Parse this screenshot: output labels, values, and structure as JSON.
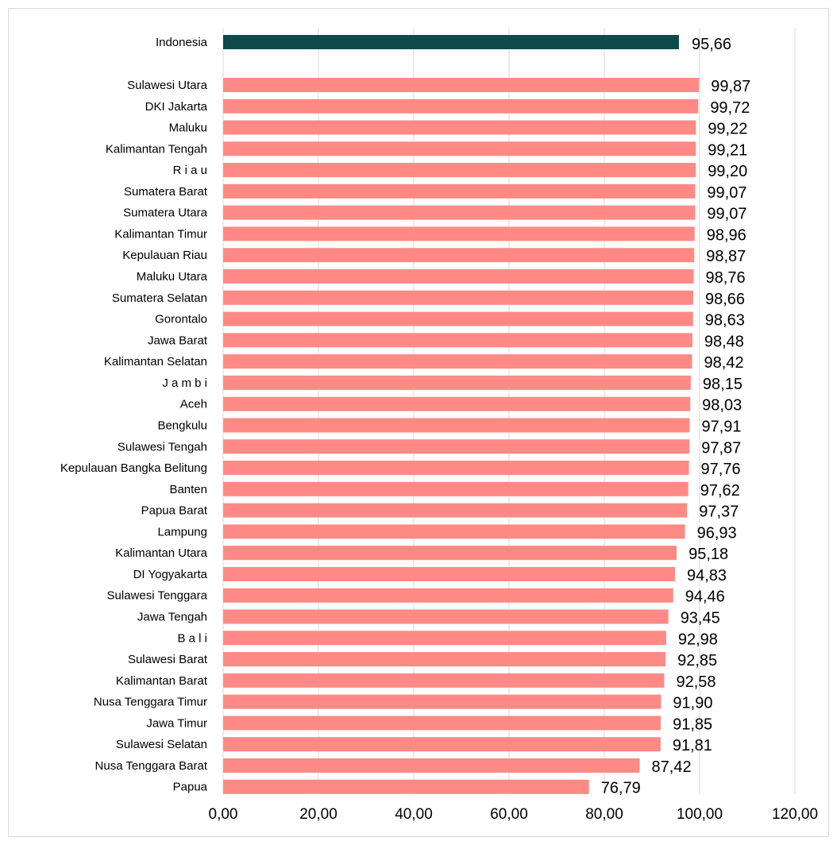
{
  "chart_data": {
    "type": "bar",
    "orientation": "horizontal",
    "title": "",
    "xlabel": "",
    "ylabel": "",
    "xlim": [
      0,
      120
    ],
    "x_ticks": [
      "0,00",
      "20,00",
      "40,00",
      "60,00",
      "80,00",
      "100,00",
      "120,00"
    ],
    "grid": true,
    "legend": "none",
    "colors": {
      "highlight": "#0d4a49",
      "bar": "#ff8a85",
      "grid": "#d9d9d9"
    },
    "highlight": {
      "category": "Indonesia",
      "value": 95.66,
      "value_label": "95,66"
    },
    "categories": [
      "Sulawesi Utara",
      "DKI Jakarta",
      "Maluku",
      "Kalimantan Tengah",
      "R i a u",
      "Sumatera Barat",
      "Sumatera Utara",
      "Kalimantan Timur",
      "Kepulauan Riau",
      "Maluku Utara",
      "Sumatera Selatan",
      "Gorontalo",
      "Jawa Barat",
      "Kalimantan Selatan",
      "J a m b i",
      "Aceh",
      "Bengkulu",
      "Sulawesi Tengah",
      "Kepulauan Bangka Belitung",
      "Banten",
      "Papua Barat",
      "Lampung",
      "Kalimantan Utara",
      "DI Yogyakarta",
      "Sulawesi Tenggara",
      "Jawa Tengah",
      "B a l i",
      "Sulawesi Barat",
      "Kalimantan Barat",
      "Nusa Tenggara Timur",
      "Jawa Timur",
      "Sulawesi Selatan",
      "Nusa Tenggara Barat",
      "Papua"
    ],
    "values": [
      99.87,
      99.72,
      99.22,
      99.21,
      99.2,
      99.07,
      99.07,
      98.96,
      98.87,
      98.76,
      98.66,
      98.63,
      98.48,
      98.42,
      98.15,
      98.03,
      97.91,
      97.87,
      97.76,
      97.62,
      97.37,
      96.93,
      95.18,
      94.83,
      94.46,
      93.45,
      92.98,
      92.85,
      92.58,
      91.9,
      91.85,
      91.81,
      87.42,
      76.79
    ],
    "value_labels": [
      "99,87",
      "99,72",
      "99,22",
      "99,21",
      "99,20",
      "99,07",
      "99,07",
      "98,96",
      "98,87",
      "98,76",
      "98,66",
      "98,63",
      "98,48",
      "98,42",
      "98,15",
      "98,03",
      "97,91",
      "97,87",
      "97,76",
      "97,62",
      "97,37",
      "96,93",
      "95,18",
      "94,83",
      "94,46",
      "93,45",
      "92,98",
      "92,85",
      "92,58",
      "91,90",
      "91,85",
      "91,81",
      "87,42",
      "76,79"
    ]
  }
}
